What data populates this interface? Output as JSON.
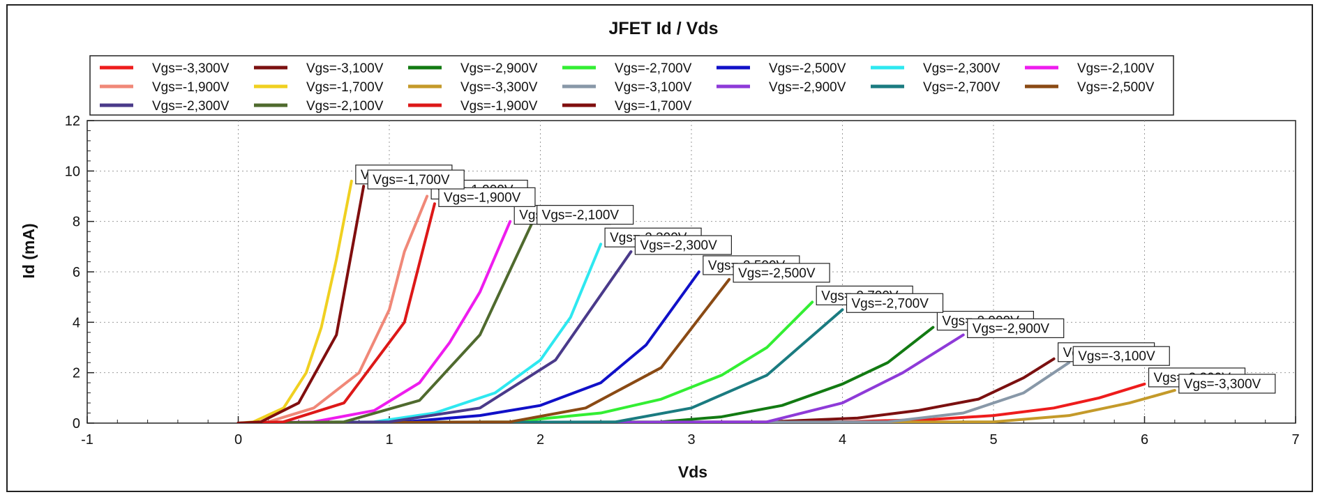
{
  "chart_data": {
    "type": "line",
    "title": "JFET Id / Vds",
    "xlabel": "Vds",
    "ylabel": "Id (mA)",
    "xlim": [
      -1,
      7
    ],
    "ylim": [
      0,
      12
    ],
    "x_ticks": [
      "-1",
      "0",
      "1",
      "2",
      "3",
      "4",
      "5",
      "6",
      "7"
    ],
    "y_ticks": [
      "0",
      "2",
      "4",
      "6",
      "8",
      "10",
      "12"
    ],
    "grid": true,
    "legend_position": "top",
    "series": [
      {
        "name": "Vgs=-3,300V",
        "color": "#ee1c1c",
        "points": [
          [
            0,
            0
          ],
          [
            4.0,
            0.05
          ],
          [
            4.6,
            0.15
          ],
          [
            5.0,
            0.3
          ],
          [
            5.4,
            0.6
          ],
          [
            5.7,
            1.0
          ],
          [
            6.0,
            1.55
          ]
        ],
        "label": "Vgs=-3,300V"
      },
      {
        "name": "Vgs=-3,100V",
        "color": "#7b1010",
        "points": [
          [
            0,
            0
          ],
          [
            3.5,
            0.05
          ],
          [
            4.1,
            0.2
          ],
          [
            4.5,
            0.5
          ],
          [
            4.9,
            0.95
          ],
          [
            5.2,
            1.8
          ],
          [
            5.4,
            2.55
          ]
        ],
        "label": "Vgs=-3,100V"
      },
      {
        "name": "Vgs=-2,900V",
        "color": "#127a12",
        "points": [
          [
            0,
            0
          ],
          [
            2.8,
            0.05
          ],
          [
            3.2,
            0.25
          ],
          [
            3.6,
            0.7
          ],
          [
            4.0,
            1.55
          ],
          [
            4.3,
            2.4
          ],
          [
            4.6,
            3.8
          ]
        ],
        "label": "Vgs=-2,900V"
      },
      {
        "name": "Vgs=-2,700V",
        "color": "#33ee33",
        "points": [
          [
            0,
            0
          ],
          [
            1.8,
            0.05
          ],
          [
            2.4,
            0.4
          ],
          [
            2.8,
            0.95
          ],
          [
            3.2,
            1.9
          ],
          [
            3.5,
            3.0
          ],
          [
            3.8,
            4.8
          ]
        ],
        "label": "Vgs=-2,700V"
      },
      {
        "name": "Vgs=-2,500V",
        "color": "#1010c8",
        "points": [
          [
            0,
            0
          ],
          [
            1.1,
            0.05
          ],
          [
            1.6,
            0.3
          ],
          [
            2.0,
            0.7
          ],
          [
            2.4,
            1.6
          ],
          [
            2.7,
            3.1
          ],
          [
            3.05,
            6.0
          ]
        ],
        "label": "Vgs=-2,500V"
      },
      {
        "name": "Vgs=-2,300V",
        "color": "#2ee8f0",
        "points": [
          [
            0,
            0
          ],
          [
            0.9,
            0.05
          ],
          [
            1.3,
            0.4
          ],
          [
            1.7,
            1.2
          ],
          [
            2.0,
            2.5
          ],
          [
            2.2,
            4.2
          ],
          [
            2.4,
            7.1
          ]
        ],
        "label": "Vgs=-2,300V"
      },
      {
        "name": "Vgs=-2,100V",
        "color": "#ee1cee",
        "points": [
          [
            0,
            0
          ],
          [
            0.5,
            0.05
          ],
          [
            0.9,
            0.5
          ],
          [
            1.2,
            1.6
          ],
          [
            1.4,
            3.2
          ],
          [
            1.6,
            5.2
          ],
          [
            1.8,
            8.0
          ]
        ],
        "label": "Vgs=-2,100V"
      },
      {
        "name": "Vgs=-1,900V",
        "color": "#f08878",
        "points": [
          [
            0,
            0
          ],
          [
            0.2,
            0.05
          ],
          [
            0.5,
            0.6
          ],
          [
            0.8,
            2.0
          ],
          [
            1.0,
            4.5
          ],
          [
            1.1,
            6.8
          ],
          [
            1.25,
            9.0
          ]
        ],
        "label": "Vgs=-1,900V"
      },
      {
        "name": "Vgs=-1,700V",
        "color": "#f0d020",
        "points": [
          [
            0,
            0
          ],
          [
            0.1,
            0.05
          ],
          [
            0.3,
            0.6
          ],
          [
            0.45,
            2.0
          ],
          [
            0.55,
            3.8
          ],
          [
            0.65,
            6.5
          ],
          [
            0.75,
            9.6
          ]
        ],
        "label": "Vgs=-1,700V"
      },
      {
        "name": "Vgs=-3,300V",
        "color": "#c49a2a",
        "points": [
          [
            0,
            0
          ],
          [
            5.0,
            0.05
          ],
          [
            5.5,
            0.3
          ],
          [
            5.9,
            0.8
          ],
          [
            6.2,
            1.3
          ]
        ],
        "label": "Vgs=-3,300V"
      },
      {
        "name": "Vgs=-3,100V",
        "color": "#8898a8",
        "points": [
          [
            0,
            0
          ],
          [
            4.3,
            0.05
          ],
          [
            4.8,
            0.4
          ],
          [
            5.2,
            1.2
          ],
          [
            5.5,
            2.4
          ]
        ],
        "label": "Vgs=-3,100V"
      },
      {
        "name": "Vgs=-2,900V",
        "color": "#8e3ad8",
        "points": [
          [
            0,
            0
          ],
          [
            3.5,
            0.05
          ],
          [
            4.0,
            0.8
          ],
          [
            4.4,
            2.0
          ],
          [
            4.8,
            3.5
          ]
        ],
        "label": "Vgs=-2,900V"
      },
      {
        "name": "Vgs=-2,700V",
        "color": "#1a7b80",
        "points": [
          [
            0,
            0
          ],
          [
            2.5,
            0.05
          ],
          [
            3.0,
            0.6
          ],
          [
            3.5,
            1.9
          ],
          [
            4.0,
            4.5
          ]
        ],
        "label": "Vgs=-2,700V"
      },
      {
        "name": "Vgs=-2,500V",
        "color": "#8a4a14",
        "points": [
          [
            0,
            0
          ],
          [
            1.8,
            0.05
          ],
          [
            2.3,
            0.6
          ],
          [
            2.8,
            2.2
          ],
          [
            3.25,
            5.7
          ]
        ],
        "label": "Vgs=-2,500V"
      },
      {
        "name": "Vgs=-2,300V",
        "color": "#4a3a8a",
        "points": [
          [
            0,
            0
          ],
          [
            1.0,
            0.05
          ],
          [
            1.6,
            0.6
          ],
          [
            2.1,
            2.5
          ],
          [
            2.6,
            6.8
          ]
        ],
        "label": "Vgs=-2,300V"
      },
      {
        "name": "Vgs=-2,100V",
        "color": "#4f6a2e",
        "points": [
          [
            0,
            0
          ],
          [
            0.7,
            0.05
          ],
          [
            1.2,
            0.9
          ],
          [
            1.6,
            3.5
          ],
          [
            1.95,
            8.0
          ]
        ],
        "label": "Vgs=-2,100V"
      },
      {
        "name": "Vgs=-1,900V",
        "color": "#dd1818",
        "points": [
          [
            0,
            0
          ],
          [
            0.3,
            0.05
          ],
          [
            0.7,
            0.8
          ],
          [
            1.1,
            4.0
          ],
          [
            1.3,
            8.7
          ]
        ],
        "label": "Vgs=-1,900V"
      },
      {
        "name": "Vgs=-1,700V",
        "color": "#800e0e",
        "points": [
          [
            0,
            0
          ],
          [
            0.15,
            0.05
          ],
          [
            0.4,
            0.8
          ],
          [
            0.65,
            3.5
          ],
          [
            0.83,
            9.4
          ]
        ],
        "label": "Vgs=-1,700V"
      }
    ]
  }
}
